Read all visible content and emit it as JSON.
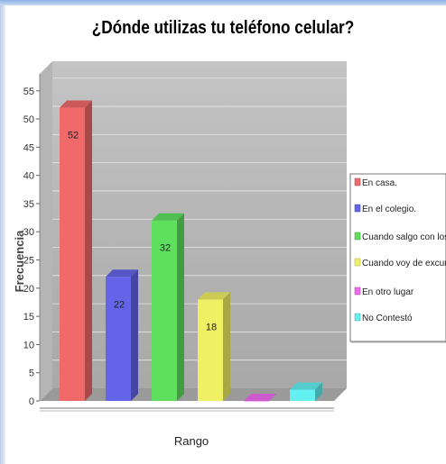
{
  "chart_data": {
    "type": "bar",
    "title": "¿Dónde utilizas tu teléfono celular?",
    "xlabel": "Rango",
    "ylabel": "Frecuencia",
    "ylim": [
      0,
      58
    ],
    "yticks": [
      0,
      5,
      10,
      15,
      20,
      25,
      30,
      35,
      40,
      45,
      50,
      55
    ],
    "grid": true,
    "legend_position": "right",
    "series": [
      {
        "name": "En casa.",
        "value": 52,
        "color": "#f06a6a",
        "show_label": true
      },
      {
        "name": "En el colegio.",
        "value": 22,
        "color": "#6464e8",
        "show_label": true
      },
      {
        "name": "Cuando salgo con los amigos.",
        "value": 32,
        "color": "#5ee05e",
        "show_label": true
      },
      {
        "name": "Cuando voy de excursión",
        "value": 18,
        "color": "#f0f064",
        "show_label": true
      },
      {
        "name": "En otro lugar",
        "value": 0,
        "color": "#f06af0",
        "show_label": false
      },
      {
        "name": "No Contestó",
        "value": 2,
        "color": "#64f0f0",
        "show_label": false
      }
    ]
  }
}
